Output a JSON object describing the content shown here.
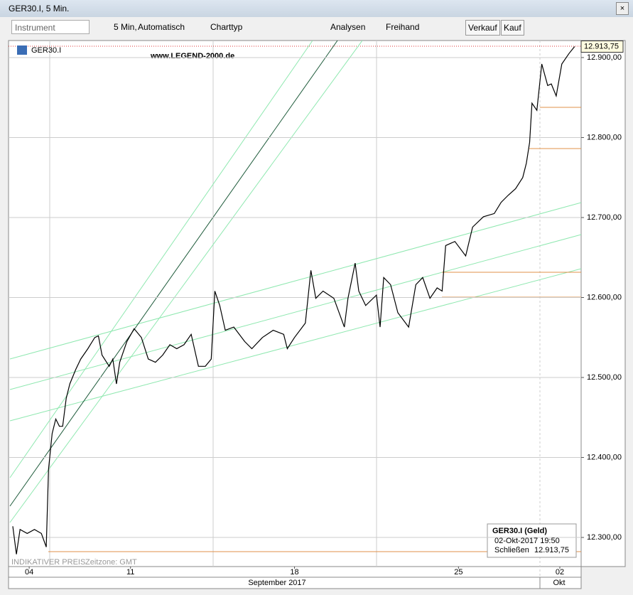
{
  "window": {
    "title": "GER30.I, 5 Min."
  },
  "toolbar": {
    "instrument": "Instrument",
    "interval": "5 Min,",
    "mode": "Automatisch",
    "chart_type": "Charttyp",
    "analyses": "Analysen",
    "freehand": "Freihand",
    "sell": "Verkauf",
    "buy": "Kauf"
  },
  "chart_data": {
    "type": "line",
    "symbol": "GER30.I",
    "watermark": "www.LEGEND-2000.de",
    "footer_left": "INDIKATIVER PREIS",
    "timezone": "Zeitzone: GMT",
    "color": "#000000",
    "x": [
      -3.59,
      -3.48,
      -3.37,
      -3.15,
      -2.93,
      -2.72,
      -2.57,
      -2.5,
      -2.39,
      -2.28,
      -2.17,
      -2.07,
      -1.96,
      -1.85,
      -1.67,
      -1.52,
      -1.3,
      -1.09,
      -0.98,
      -0.87,
      -0.65,
      -0.54,
      -0.43,
      -0.33,
      -0.11,
      0.11,
      0.33,
      0.54,
      0.76,
      0.98,
      1.2,
      1.41,
      1.63,
      1.85,
      2.07,
      2.28,
      2.46,
      2.57,
      2.72,
      2.89,
      3.15,
      3.48,
      3.7,
      4.02,
      4.35,
      4.67,
      4.78,
      5,
      5.33,
      5.5,
      5.65,
      5.87,
      6.2,
      6.52,
      6.63,
      6.85,
      6.96,
      7.17,
      7.5,
      7.61,
      7.72,
      7.93,
      8.15,
      8.48,
      8.7,
      8.91,
      9.13,
      9.35,
      9.5,
      9.61,
      9.89,
      10.22,
      10.43,
      10.76,
      11.09,
      11.3,
      11.52,
      11.74,
      11.96,
      12.07,
      12.17,
      12.24,
      12.39,
      12.54,
      12.72,
      12.83,
      12.98,
      13.15,
      13.37,
      13.54
    ],
    "values": [
      12314,
      12279,
      12310,
      12305,
      12310,
      12305,
      12288,
      12385,
      12430,
      12448,
      12439,
      12439,
      12474,
      12492,
      12510,
      12523,
      12536,
      12550,
      12552,
      12528,
      12514,
      12523,
      12492,
      12519,
      12545,
      12561,
      12550,
      12523,
      12519,
      12528,
      12541,
      12536,
      12541,
      12554,
      12514,
      12514,
      12523,
      12608,
      12590,
      12559,
      12563,
      12545,
      12536,
      12550,
      12559,
      12554,
      12536,
      12550,
      12568,
      12634,
      12599,
      12608,
      12599,
      12563,
      12599,
      12643,
      12608,
      12590,
      12603,
      12563,
      12625,
      12616,
      12581,
      12563,
      12616,
      12625,
      12599,
      12612,
      12608,
      12665,
      12670,
      12652,
      12688,
      12701,
      12705,
      12719,
      12728,
      12736,
      12750,
      12768,
      12794,
      12843,
      12834,
      12892,
      12865,
      12867,
      12852,
      12892,
      12905,
      12913.75
    ],
    "xlim": [
      -3.72,
      13.74
    ],
    "xticks": [
      {
        "value": -3.09,
        "label": "04"
      },
      {
        "value": 0,
        "label": "11"
      },
      {
        "value": 5,
        "label": "18"
      },
      {
        "value": 10,
        "label": "25"
      },
      {
        "value": 13.09,
        "label": "02"
      }
    ],
    "months": [
      "September 2017",
      "Okt"
    ],
    "ylim": [
      12263.6,
      12921.3
    ],
    "yticks": [
      {
        "value": 12300,
        "label": "12.300,00"
      },
      {
        "value": 12400,
        "label": "12.400,00"
      },
      {
        "value": 12500,
        "label": "12.500,00"
      },
      {
        "value": 12600,
        "label": "12.600,00"
      },
      {
        "value": 12700,
        "label": "12.700,00"
      },
      {
        "value": 12800,
        "label": "12.800,00"
      },
      {
        "value": 12900,
        "label": "12.900,00"
      }
    ],
    "grid": true,
    "last_price": {
      "value": 12913.75,
      "label": "12.913,75"
    },
    "info": {
      "title": "GER30.I (Geld)",
      "datetime": "02-Okt-2017 19:50",
      "close_label": "Schließen"
    }
  }
}
